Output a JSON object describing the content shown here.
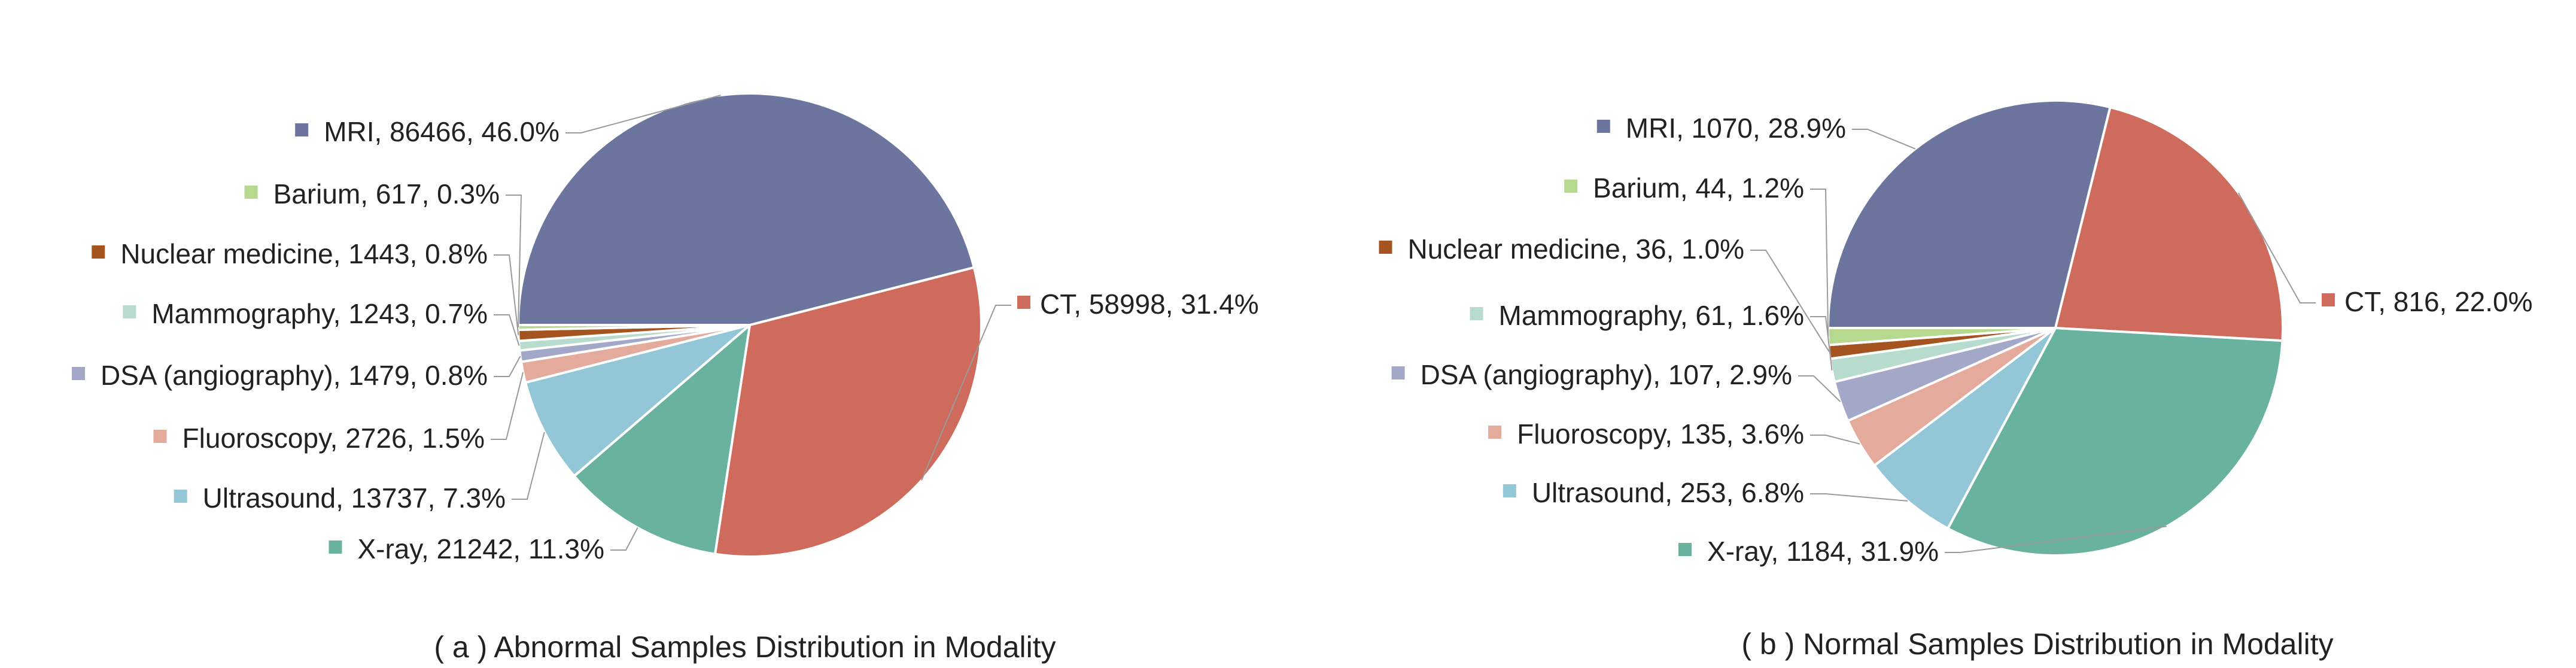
{
  "chart_data": [
    {
      "type": "pie",
      "title": "( a ) Abnormal Samples Distribution in Modality",
      "slices": [
        {
          "label": "MRI",
          "value": 86466,
          "percent": "46.0%",
          "color": "#6b759e"
        },
        {
          "label": "CT",
          "value": 58998,
          "percent": "31.4%",
          "color": "#cf6b5c"
        },
        {
          "label": "X-ray",
          "value": 21242,
          "percent": "11.3%",
          "color": "#6ab2a0"
        },
        {
          "label": "Ultrasound",
          "value": 13737,
          "percent": "7.3%",
          "color": "#93c7d8"
        },
        {
          "label": "Fluoroscopy",
          "value": 2726,
          "percent": "1.5%",
          "color": "#e4aa9c"
        },
        {
          "label": "DSA (angiography)",
          "value": 1479,
          "percent": "0.8%",
          "color": "#a4a8c8"
        },
        {
          "label": "Mammography",
          "value": 1243,
          "percent": "0.7%",
          "color": "#b7dccd"
        },
        {
          "label": "Nuclear medicine",
          "value": 1443,
          "percent": "0.8%",
          "color": "#a6541f"
        },
        {
          "label": "Barium",
          "value": 617,
          "percent": "0.3%",
          "color": "#b6d88f"
        }
      ]
    },
    {
      "type": "pie",
      "title": "( b ) Normal Samples Distribution in Modality",
      "slices": [
        {
          "label": "MRI",
          "value": 1070,
          "percent": "28.9%",
          "color": "#6b759e"
        },
        {
          "label": "CT",
          "value": 816,
          "percent": "22.0%",
          "color": "#cf6b5c"
        },
        {
          "label": "X-ray",
          "value": 1184,
          "percent": "31.9%",
          "color": "#6ab2a0"
        },
        {
          "label": "Ultrasound",
          "value": 253,
          "percent": "6.8%",
          "color": "#93c7d8"
        },
        {
          "label": "Fluoroscopy",
          "value": 135,
          "percent": "3.6%",
          "color": "#e4aa9c"
        },
        {
          "label": "DSA (angiography)",
          "value": 107,
          "percent": "2.9%",
          "color": "#a4a8c8"
        },
        {
          "label": "Mammography",
          "value": 61,
          "percent": "1.6%",
          "color": "#b7dccd"
        },
        {
          "label": "Nuclear medicine",
          "value": 36,
          "percent": "1.0%",
          "color": "#a6541f"
        },
        {
          "label": "Barium",
          "value": 44,
          "percent": "1.2%",
          "color": "#b6d88f"
        }
      ]
    }
  ]
}
